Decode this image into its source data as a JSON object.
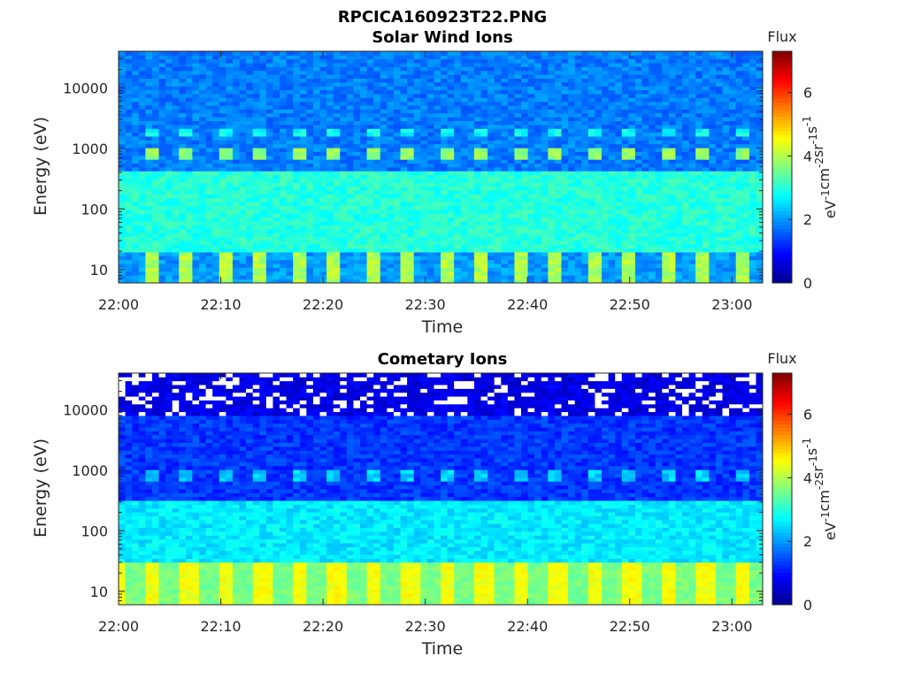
{
  "figure_title": "RPCICA160923T22.PNG",
  "colormap": [
    "#00008f",
    "#0000ff",
    "#00ffff",
    "#ffff00",
    "#ff0000",
    "#800000"
  ],
  "chart_data": [
    {
      "type": "heatmap",
      "title": "Solar Wind Ions",
      "xlabel": "Time",
      "ylabel": "Energy (eV)",
      "xticks": [
        "22:00",
        "22:10",
        "22:20",
        "22:30",
        "22:40",
        "22:50",
        "23:00"
      ],
      "xlim": [
        "22:00",
        "23:03"
      ],
      "yscale": "log",
      "yticks": [
        "10",
        "100",
        "1000",
        "10000"
      ],
      "ylim": [
        6,
        40000
      ],
      "colorbar": {
        "title": "Flux",
        "label": "eV-1cm-2sr-1s-1",
        "ticks": [
          "0",
          "2",
          "4",
          "6"
        ],
        "range": [
          0,
          7.3
        ]
      },
      "bands": [
        {
          "energy_eV": [
            6,
            20
          ],
          "flux": 3.7,
          "note": "periodic brighter columns"
        },
        {
          "energy_eV": [
            20,
            400
          ],
          "flux": 3.0
        },
        {
          "energy_eV": [
            400,
            40000
          ],
          "flux": 1.8
        },
        {
          "energy_eV": [
            700,
            1000
          ],
          "flux": 3.8,
          "note": "periodic peaks ~every 3.2 min"
        },
        {
          "energy_eV": [
            1500,
            2000
          ],
          "flux": 2.8,
          "note": "periodic secondary peaks"
        }
      ]
    },
    {
      "type": "heatmap",
      "title": "Cometary Ions",
      "xlabel": "Time",
      "ylabel": "Energy (eV)",
      "xticks": [
        "22:00",
        "22:10",
        "22:20",
        "22:30",
        "22:40",
        "22:50",
        "23:00"
      ],
      "xlim": [
        "22:00",
        "23:03"
      ],
      "yscale": "log",
      "yticks": [
        "10",
        "100",
        "1000",
        "10000"
      ],
      "ylim": [
        6,
        40000
      ],
      "colorbar": {
        "title": "Flux",
        "label": "eV-1cm-2sr-1s-1",
        "ticks": [
          "0",
          "2",
          "4",
          "6"
        ],
        "range": [
          0,
          7.3
        ]
      },
      "bands": [
        {
          "energy_eV": [
            6,
            30
          ],
          "flux": 4.3,
          "note": "periodic bright yellow columns"
        },
        {
          "energy_eV": [
            30,
            300
          ],
          "flux": 2.6
        },
        {
          "energy_eV": [
            300,
            8000
          ],
          "flux": 1.3
        },
        {
          "energy_eV": [
            700,
            1000
          ],
          "flux": 2.4,
          "note": "periodic weak peaks"
        },
        {
          "energy_eV": [
            8000,
            40000
          ],
          "flux": 0.7,
          "note": "sparse, many empty (white) bins"
        }
      ]
    }
  ]
}
